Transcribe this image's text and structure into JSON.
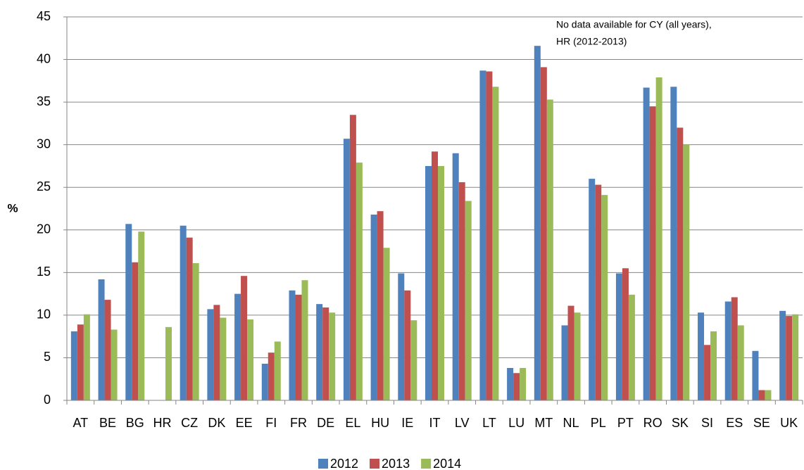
{
  "chart_data": {
    "type": "bar",
    "y_label": "%",
    "annotation": [
      "No data available for CY (all years),",
      "HR (2012-2013)"
    ],
    "categories": [
      "AT",
      "BE",
      "BG",
      "HR",
      "CZ",
      "DK",
      "EE",
      "FI",
      "FR",
      "DE",
      "EL",
      "HU",
      "IE",
      "IT",
      "LV",
      "LT",
      "LU",
      "MT",
      "NL",
      "PL",
      "PT",
      "RO",
      "SK",
      "SI",
      "ES",
      "SE",
      "UK"
    ],
    "series": [
      {
        "name": "2012",
        "color": "#4f81bd",
        "values": [
          8.1,
          14.2,
          20.7,
          null,
          20.5,
          10.7,
          12.5,
          4.3,
          12.9,
          11.3,
          30.7,
          21.8,
          14.9,
          27.5,
          29.0,
          38.7,
          3.8,
          41.6,
          8.8,
          26.0,
          14.9,
          36.7,
          36.8,
          10.3,
          11.6,
          5.8,
          10.5
        ]
      },
      {
        "name": "2013",
        "color": "#c0504d",
        "values": [
          8.9,
          11.8,
          16.2,
          null,
          19.1,
          11.2,
          14.6,
          5.6,
          12.4,
          10.9,
          33.5,
          22.2,
          12.9,
          29.2,
          25.6,
          38.6,
          3.2,
          39.1,
          11.1,
          25.3,
          15.5,
          34.5,
          32.0,
          6.5,
          12.1,
          1.2,
          9.9
        ]
      },
      {
        "name": "2014",
        "color": "#9bbb59",
        "values": [
          10.1,
          8.3,
          19.8,
          8.6,
          16.1,
          9.7,
          9.5,
          6.9,
          14.1,
          10.3,
          27.9,
          17.9,
          9.4,
          27.5,
          23.4,
          36.8,
          3.8,
          35.3,
          10.3,
          24.1,
          12.4,
          37.9,
          30.0,
          8.1,
          8.8,
          1.2,
          10.1
        ]
      }
    ],
    "ylim": [
      0,
      45
    ],
    "yticks": [
      0,
      5,
      10,
      15,
      20,
      25,
      30,
      35,
      40,
      45
    ],
    "grid": true,
    "legend": "bottom"
  }
}
